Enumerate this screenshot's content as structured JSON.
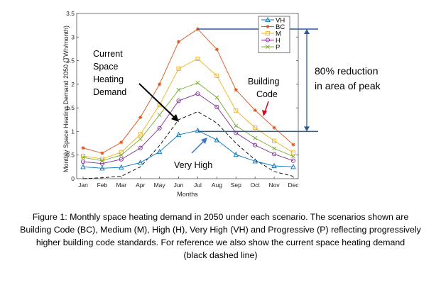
{
  "chart_data": {
    "type": "line",
    "xlabel": "Months",
    "ylabel": "Monthly Space Heating Demand 2050 (TWh/month)",
    "categories": [
      "Jan",
      "Feb",
      "Mar",
      "Apr",
      "May",
      "Jun",
      "Jul",
      "Aug",
      "Sep",
      "Oct",
      "Nov",
      "Dec"
    ],
    "ylim": [
      0,
      3.5
    ],
    "yticks": [
      "0",
      "0.5",
      "1",
      "1.5",
      "2",
      "2.5",
      "3",
      "3.5"
    ],
    "grid": false,
    "legend_position": "top-right",
    "series": [
      {
        "name": "VH",
        "color": "#0072BD",
        "marker": "triangle",
        "values": [
          0.25,
          0.22,
          0.24,
          0.34,
          0.57,
          0.93,
          1.02,
          0.82,
          0.51,
          0.37,
          0.27,
          0.25
        ]
      },
      {
        "name": "BC",
        "color": "#D95319",
        "marker": "star",
        "values": [
          0.65,
          0.54,
          0.77,
          1.3,
          2.0,
          2.9,
          3.17,
          2.74,
          1.88,
          1.45,
          1.08,
          0.72
        ]
      },
      {
        "name": "M",
        "color": "#EDB120",
        "marker": "square",
        "values": [
          0.48,
          0.42,
          0.56,
          0.94,
          1.56,
          2.33,
          2.54,
          2.18,
          1.44,
          1.08,
          0.8,
          0.55
        ]
      },
      {
        "name": "H",
        "color": "#7E2F8E",
        "marker": "circle",
        "values": [
          0.36,
          0.32,
          0.41,
          0.65,
          1.07,
          1.65,
          1.8,
          1.52,
          0.97,
          0.71,
          0.52,
          0.38
        ]
      },
      {
        "name": "P",
        "color": "#77AC30",
        "marker": "x",
        "values": [
          0.45,
          0.38,
          0.5,
          0.84,
          1.35,
          1.88,
          2.03,
          1.72,
          1.12,
          0.86,
          0.64,
          0.47
        ]
      },
      {
        "name": "",
        "color": "#000000",
        "style": "dashed",
        "values": [
          0.0,
          0.02,
          0.05,
          0.25,
          0.7,
          1.25,
          1.42,
          1.18,
          0.75,
          0.4,
          0.15,
          0.05
        ]
      }
    ],
    "reference_lines": [
      {
        "y": 3.17,
        "color": "#2E5A9C"
      },
      {
        "y": 1.0,
        "color": "#2E5A9C"
      }
    ],
    "annotations": {
      "current": [
        "Current",
        "Space",
        "Heating",
        "Demand"
      ],
      "building_code": [
        "Building",
        "Code"
      ],
      "very_high": "Very High",
      "reduction": [
        "80% reduction",
        "in area of peak"
      ]
    }
  },
  "caption": [
    "Figure 1: Monthly space heating demand in 2050 under each scenario. The scenarios shown are",
    "Building Code (BC), Medium (M), High (H), Very High (VH) and Progressive (P) reflecting progressively",
    "higher building code standards. For reference we also show the current space heating demand",
    "(black dashed line)"
  ]
}
